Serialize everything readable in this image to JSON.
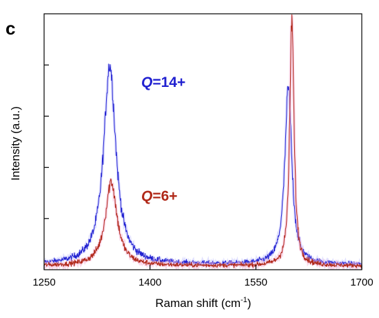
{
  "chart_data": {
    "type": "line",
    "panel_label": "c",
    "xlabel": "Raman shift (cm",
    "xlabel_superscript": "-1",
    "xlabel_suffix": ")",
    "ylabel": "Intensity (a.u.)",
    "xlim": [
      1250,
      1700
    ],
    "ylim": [
      0,
      1
    ],
    "xticks": [
      1250,
      1400,
      1550,
      1700
    ],
    "y_tick_labels_shown": false,
    "grid": false,
    "legend": "none",
    "series": [
      {
        "name": "Q=14+",
        "annotation_italic": "Q",
        "annotation_rest": "=14+",
        "color": "#2020d0",
        "peaks": [
          {
            "center": 1343,
            "height": 0.78,
            "width": 10.5
          },
          {
            "center": 1596,
            "height": 0.69,
            "width": 6.0
          }
        ],
        "baseline": 0.02
      },
      {
        "name": "Q=6+",
        "annotation_italic": "Q",
        "annotation_rest": "=6+",
        "color": "#b02818",
        "peaks": [
          {
            "center": 1345,
            "height": 0.33,
            "width": 10.0
          },
          {
            "center": 1601,
            "height": 0.97,
            "width": 3.6
          }
        ],
        "baseline": 0.015
      }
    ]
  }
}
